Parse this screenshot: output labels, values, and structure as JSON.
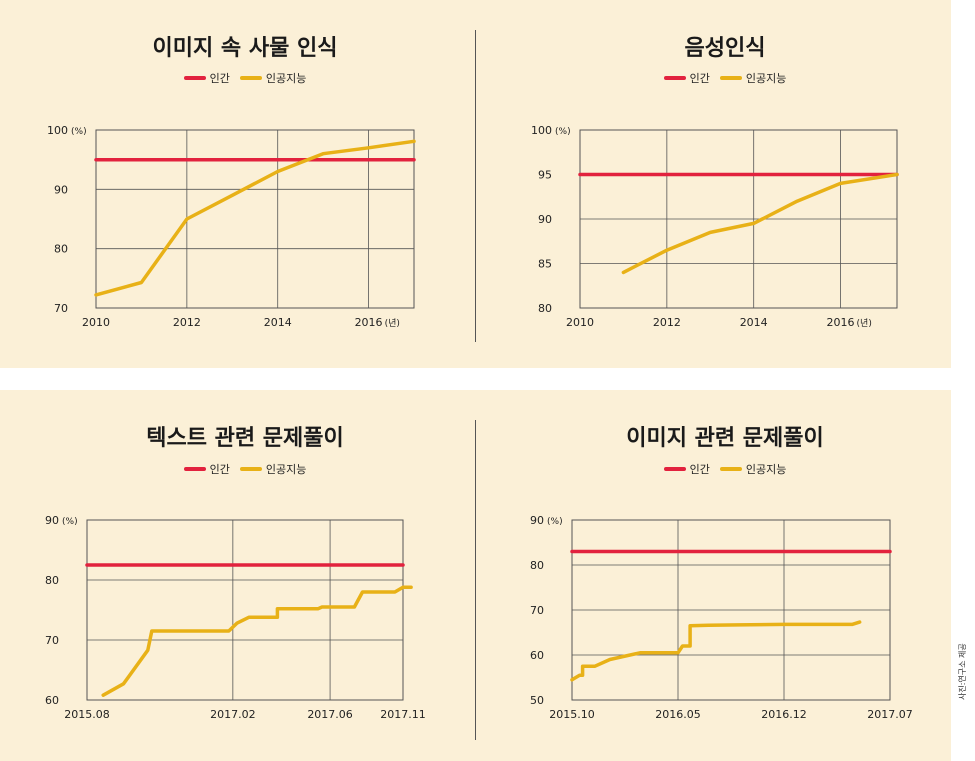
{
  "colors": {
    "background": "#fbf0d7",
    "human": "#e2223e",
    "ai": "#e8b117",
    "grid": "#555555"
  },
  "legend": {
    "human": "인간",
    "ai": "인공지능"
  },
  "credit": "사진:연구소 제공",
  "chart_data": [
    {
      "type": "line",
      "title": "이미지 속 사물 인식",
      "yunit": "(%)",
      "xunit": "(년)",
      "xlim": [
        2010,
        2017
      ],
      "ylim": [
        70,
        100
      ],
      "xticks": [
        "2010",
        "2012",
        "2014",
        "2016"
      ],
      "yticks": [
        "70",
        "80",
        "90",
        "100"
      ],
      "grid": true,
      "legend_position": "top",
      "series": [
        {
          "name": "인간",
          "x": [
            2010,
            2017
          ],
          "y": [
            95,
            95
          ]
        },
        {
          "name": "인공지능",
          "x": [
            2010,
            2011,
            2012,
            2013,
            2014,
            2015,
            2016,
            2017
          ],
          "y": [
            72.2,
            74.3,
            85,
            89,
            93,
            96,
            97,
            98.1
          ]
        }
      ]
    },
    {
      "type": "line",
      "title": "음성인식",
      "yunit": "(%)",
      "xunit": "(년)",
      "xlim": [
        2010,
        2017.3
      ],
      "ylim": [
        80,
        100
      ],
      "xticks": [
        "2010",
        "2012",
        "2014",
        "2016"
      ],
      "yticks": [
        "80",
        "85",
        "90",
        "95",
        "100"
      ],
      "grid": true,
      "legend_position": "top",
      "series": [
        {
          "name": "인간",
          "x": [
            2010,
            2017.3
          ],
          "y": [
            95,
            95
          ]
        },
        {
          "name": "인공지능",
          "x": [
            2011,
            2012,
            2013,
            2014,
            2015,
            2016,
            2017.3
          ],
          "y": [
            84,
            86.5,
            88.5,
            89.5,
            92,
            94,
            95
          ]
        }
      ]
    },
    {
      "type": "line",
      "title": "텍스트 관련 문제풀이",
      "yunit": "(%)",
      "xlim": [
        0,
        39
      ],
      "ylim": [
        60,
        90
      ],
      "xticks": [
        "2015.08",
        "2017.02",
        "2017.06",
        "2017.11"
      ],
      "xtick_pos": [
        0,
        18,
        30,
        39
      ],
      "yticks": [
        "60",
        "70",
        "80",
        "90"
      ],
      "grid": true,
      "legend_position": "top",
      "series": [
        {
          "name": "인간",
          "x": [
            0,
            39
          ],
          "y": [
            82.5,
            82.5
          ]
        },
        {
          "name": "인공지능",
          "x": [
            2,
            4.5,
            7.5,
            8,
            13,
            14,
            17,
            17.5,
            18.5,
            20,
            23.5,
            23.5,
            28.5,
            29,
            33,
            34,
            38,
            39,
            40
          ],
          "y": [
            60.8,
            62.7,
            68.3,
            71.5,
            71.5,
            71.5,
            71.5,
            71.5,
            72.8,
            73.8,
            73.8,
            75.2,
            75.2,
            75.5,
            75.5,
            78,
            78,
            78.8,
            78.8
          ]
        }
      ]
    },
    {
      "type": "line",
      "title": "이미지 관련 문제풀이",
      "yunit": "(%)",
      "xlim": [
        0,
        21
      ],
      "ylim": [
        50,
        90
      ],
      "xticks": [
        "2015.10",
        "2016.05",
        "2016.12",
        "2017.07"
      ],
      "xtick_pos": [
        0,
        7,
        14,
        21
      ],
      "yticks": [
        "50",
        "60",
        "70",
        "80",
        "90"
      ],
      "grid": true,
      "legend_position": "top",
      "series": [
        {
          "name": "인간",
          "x": [
            0,
            21
          ],
          "y": [
            83,
            83
          ]
        },
        {
          "name": "인공지능",
          "x": [
            0,
            0.5,
            0.7,
            0.7,
            0.9,
            1.5,
            2.5,
            4.5,
            7,
            7.3,
            7.8,
            7.8,
            9,
            11,
            14,
            17,
            18.5,
            19
          ],
          "y": [
            54.5,
            55.5,
            55.5,
            57.5,
            57.5,
            57.5,
            59,
            60.5,
            60.5,
            62,
            62,
            66.5,
            66.6,
            66.7,
            66.8,
            66.8,
            66.8,
            67.3
          ]
        }
      ]
    }
  ]
}
